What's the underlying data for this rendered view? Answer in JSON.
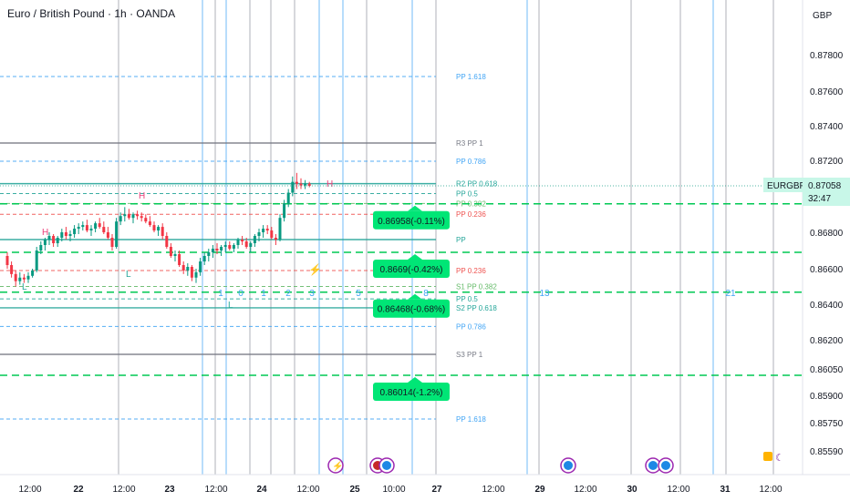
{
  "header": {
    "title": "Euro / British Pound · 1h · OANDA",
    "currency": "GBP"
  },
  "chart_data": {
    "type": "candlestick",
    "symbol": "EURGBP",
    "last_price": "0.87058",
    "countdown": "32:47",
    "y_ticks": [
      "0.87800",
      "0.87600",
      "0.87400",
      "0.87200",
      "0.86800",
      "0.86600",
      "0.86400",
      "0.86200",
      "0.86050",
      "0.85900",
      "0.85750",
      "0.85590"
    ],
    "x_ticks": [
      {
        "label": "12:00",
        "bold": false
      },
      {
        "label": "22",
        "bold": true
      },
      {
        "label": "12:00",
        "bold": false
      },
      {
        "label": "23",
        "bold": true
      },
      {
        "label": "12:00",
        "bold": false
      },
      {
        "label": "24",
        "bold": true
      },
      {
        "label": "12:00",
        "bold": false
      },
      {
        "label": "25",
        "bold": true
      },
      {
        "label": "10:00",
        "bold": false
      },
      {
        "label": "27",
        "bold": true
      },
      {
        "label": "12:00",
        "bold": false
      },
      {
        "label": "29",
        "bold": true
      },
      {
        "label": "12:00",
        "bold": false
      },
      {
        "label": "30",
        "bold": true
      },
      {
        "label": "12:00",
        "bold": false
      },
      {
        "label": "31",
        "bold": true
      },
      {
        "label": "12:00",
        "bold": false
      }
    ],
    "pivot_levels": [
      {
        "label": "PP 1.618",
        "price": 0.8768,
        "color": "#42a5f5",
        "style": "dashed"
      },
      {
        "label": "R3 PP 1",
        "price": 0.873,
        "color": "#787b86",
        "style": "solid"
      },
      {
        "label": "PP 0.786",
        "price": 0.87195,
        "color": "#42a5f5",
        "style": "dashed"
      },
      {
        "label": "R2 PP 0.618",
        "price": 0.8707,
        "color": "#26a69a",
        "style": "solid"
      },
      {
        "label": "PP 0.5",
        "price": 0.87015,
        "color": "#26a69a",
        "style": "dashed"
      },
      {
        "label": "PP 0.382",
        "price": 0.8696,
        "color": "#66bb6a",
        "style": "dashed"
      },
      {
        "label": "PP 0.236",
        "price": 0.869,
        "color": "#ef5350",
        "style": "dashed"
      },
      {
        "label": "PP",
        "price": 0.8676,
        "color": "#26a69a",
        "style": "solid"
      },
      {
        "label": "PP 0.236",
        "price": 0.8659,
        "color": "#ef5350",
        "style": "dashed"
      },
      {
        "label": "S1 PP 0.382",
        "price": 0.865,
        "color": "#66bb6a",
        "style": "dashed"
      },
      {
        "label": "PP 0.5",
        "price": 0.8643,
        "color": "#26a69a",
        "style": "dashed"
      },
      {
        "label": "S2 PP 0.618",
        "price": 0.8638,
        "color": "#26a69a",
        "style": "solid"
      },
      {
        "label": "PP 0.786",
        "price": 0.86275,
        "color": "#42a5f5",
        "style": "dashed"
      },
      {
        "label": "S3 PP 1",
        "price": 0.86125,
        "color": "#787b86",
        "style": "solid"
      },
      {
        "label": "PP 1.618",
        "price": 0.8577,
        "color": "#42a5f5",
        "style": "dashed"
      }
    ],
    "target_lines": [
      {
        "price": 0.86958,
        "label": "0.86958(-0.11%)"
      },
      {
        "price": 0.8669,
        "label": "0.8669(-0.42%)"
      },
      {
        "price": 0.86468,
        "label": "0.86468(-0.68%)"
      },
      {
        "price": 0.86014,
        "label": "0.86014(-1.2%)"
      }
    ],
    "cycle_labels": [
      "1",
      "0",
      "1",
      "2",
      "3",
      "5",
      "8",
      "13",
      "21"
    ],
    "swing_labels": [
      {
        "text": "L",
        "kind": "low"
      },
      {
        "text": "H",
        "kind": "high"
      },
      {
        "text": "L",
        "kind": "low"
      },
      {
        "text": "H",
        "kind": "high"
      },
      {
        "text": "L",
        "kind": "low"
      },
      {
        "text": "H",
        "kind": "high"
      }
    ],
    "series": [
      {
        "name": "EURGBP",
        "ohlc": [
          [
            0.8667,
            0.8669,
            0.866,
            0.8662
          ],
          [
            0.8662,
            0.8664,
            0.8655,
            0.8657
          ],
          [
            0.8657,
            0.8659,
            0.865,
            0.8653
          ],
          [
            0.8653,
            0.8658,
            0.8651,
            0.8655
          ],
          [
            0.8655,
            0.8657,
            0.8652,
            0.8654
          ],
          [
            0.8654,
            0.8658,
            0.8652,
            0.8656
          ],
          [
            0.8656,
            0.866,
            0.8655,
            0.8659
          ],
          [
            0.8659,
            0.8672,
            0.8658,
            0.867
          ],
          [
            0.867,
            0.8675,
            0.8668,
            0.8673
          ],
          [
            0.8673,
            0.8677,
            0.867,
            0.8676
          ],
          [
            0.8676,
            0.868,
            0.8673,
            0.8678
          ],
          [
            0.8678,
            0.8679,
            0.8672,
            0.8674
          ],
          [
            0.8674,
            0.8678,
            0.8672,
            0.8677
          ],
          [
            0.8677,
            0.8682,
            0.8675,
            0.868
          ],
          [
            0.868,
            0.8683,
            0.8676,
            0.8678
          ],
          [
            0.8678,
            0.8681,
            0.8675,
            0.8679
          ],
          [
            0.8679,
            0.8684,
            0.8677,
            0.8682
          ],
          [
            0.8682,
            0.8685,
            0.8679,
            0.8683
          ],
          [
            0.8683,
            0.8686,
            0.8681,
            0.8684
          ],
          [
            0.8684,
            0.8687,
            0.868,
            0.8681
          ],
          [
            0.8681,
            0.8684,
            0.8678,
            0.8682
          ],
          [
            0.8682,
            0.8686,
            0.868,
            0.8685
          ],
          [
            0.8685,
            0.8688,
            0.8682,
            0.8683
          ],
          [
            0.8683,
            0.8686,
            0.8679,
            0.868
          ],
          [
            0.868,
            0.8683,
            0.8676,
            0.8677
          ],
          [
            0.8677,
            0.8679,
            0.867,
            0.8672
          ],
          [
            0.8672,
            0.8688,
            0.8671,
            0.8686
          ],
          [
            0.8686,
            0.8691,
            0.8684,
            0.8689
          ],
          [
            0.8689,
            0.8694,
            0.8686,
            0.869
          ],
          [
            0.869,
            0.8693,
            0.8687,
            0.8688
          ],
          [
            0.8688,
            0.8691,
            0.8685,
            0.869
          ],
          [
            0.869,
            0.8692,
            0.8687,
            0.8689
          ],
          [
            0.8689,
            0.8691,
            0.8686,
            0.8688
          ],
          [
            0.8688,
            0.869,
            0.8685,
            0.8686
          ],
          [
            0.8686,
            0.8689,
            0.8683,
            0.8684
          ],
          [
            0.8684,
            0.8686,
            0.868,
            0.8681
          ],
          [
            0.8681,
            0.8684,
            0.8678,
            0.8683
          ],
          [
            0.8683,
            0.8685,
            0.8676,
            0.8678
          ],
          [
            0.8678,
            0.868,
            0.8671,
            0.8672
          ],
          [
            0.8672,
            0.8674,
            0.8666,
            0.8667
          ],
          [
            0.8667,
            0.867,
            0.8664,
            0.8668
          ],
          [
            0.8668,
            0.867,
            0.8661,
            0.8662
          ],
          [
            0.8662,
            0.8664,
            0.8657,
            0.8659
          ],
          [
            0.8659,
            0.8663,
            0.8656,
            0.8661
          ],
          [
            0.8661,
            0.8662,
            0.8653,
            0.8655
          ],
          [
            0.8655,
            0.866,
            0.8652,
            0.8658
          ],
          [
            0.8658,
            0.8666,
            0.8656,
            0.8664
          ],
          [
            0.8664,
            0.8669,
            0.8662,
            0.8667
          ],
          [
            0.8667,
            0.8671,
            0.8664,
            0.8669
          ],
          [
            0.8669,
            0.8673,
            0.8666,
            0.8671
          ],
          [
            0.8671,
            0.8674,
            0.8668,
            0.867
          ],
          [
            0.867,
            0.8673,
            0.8667,
            0.8672
          ],
          [
            0.8672,
            0.8675,
            0.8669,
            0.8673
          ],
          [
            0.8673,
            0.8675,
            0.867,
            0.8671
          ],
          [
            0.8671,
            0.8674,
            0.8669,
            0.8673
          ],
          [
            0.8673,
            0.8677,
            0.8671,
            0.8676
          ],
          [
            0.8676,
            0.8678,
            0.8673,
            0.8675
          ],
          [
            0.8675,
            0.8677,
            0.8671,
            0.8672
          ],
          [
            0.8672,
            0.8675,
            0.8669,
            0.8674
          ],
          [
            0.8674,
            0.8679,
            0.8672,
            0.8678
          ],
          [
            0.8678,
            0.8682,
            0.8675,
            0.868
          ],
          [
            0.868,
            0.8684,
            0.8677,
            0.8682
          ],
          [
            0.8682,
            0.8684,
            0.8679,
            0.8681
          ],
          [
            0.8681,
            0.8683,
            0.8676,
            0.8677
          ],
          [
            0.8677,
            0.8679,
            0.8673,
            0.8676
          ],
          [
            0.8676,
            0.869,
            0.8675,
            0.8688
          ],
          [
            0.8688,
            0.8698,
            0.8686,
            0.8696
          ],
          [
            0.8696,
            0.8704,
            0.8694,
            0.8702
          ],
          [
            0.8702,
            0.8711,
            0.87,
            0.8708
          ],
          [
            0.8708,
            0.8713,
            0.8704,
            0.8707
          ],
          [
            0.8707,
            0.871,
            0.8704,
            0.8706
          ],
          [
            0.8706,
            0.8709,
            0.8704,
            0.8707
          ],
          [
            0.8707,
            0.8708,
            0.8705,
            0.87058
          ]
        ]
      }
    ]
  }
}
